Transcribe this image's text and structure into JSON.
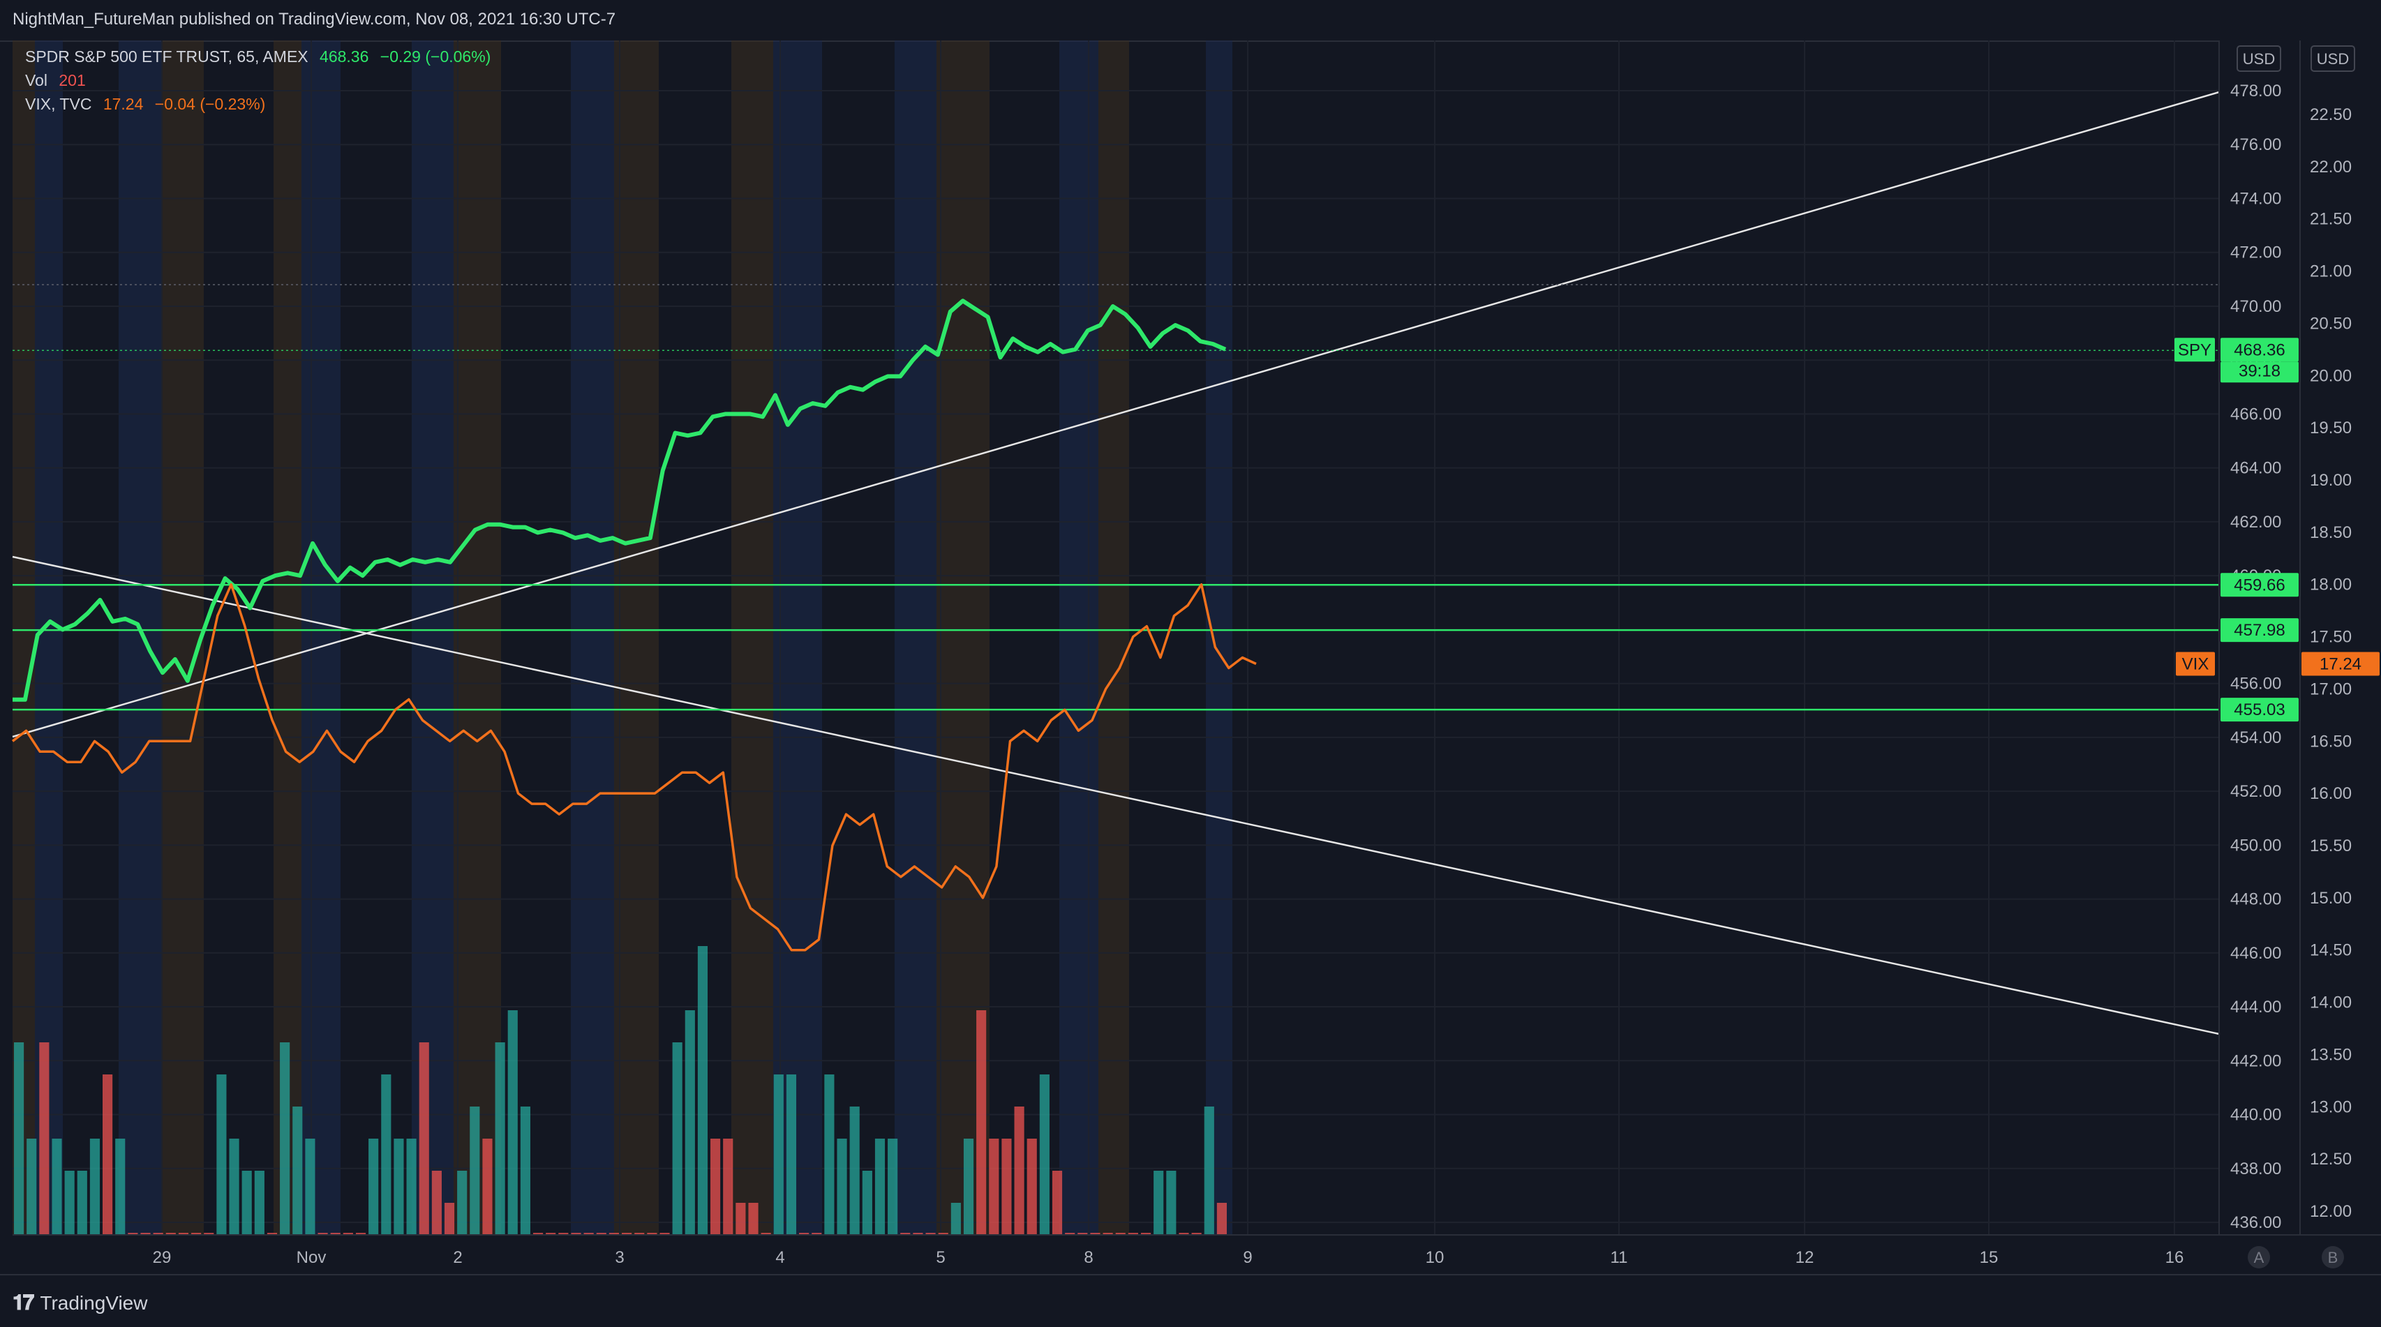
{
  "header": {
    "text": "NightMan_FutureMan published on TradingView.com, Nov 08, 2021 16:30 UTC-7"
  },
  "legend": {
    "spy": {
      "name": "SPDR S&P 500 ETF TRUST, 65, AMEX",
      "price": "468.36",
      "change": "−0.29 (−0.06%)"
    },
    "vol": {
      "name": "Vol",
      "value": "201"
    },
    "vix": {
      "name": "VIX, TVC",
      "price": "17.24",
      "change": "−0.04 (−0.23%)"
    }
  },
  "axis": {
    "left_currency": "USD",
    "right_currency": "USD",
    "left_ticks": [
      "478.00",
      "476.00",
      "474.00",
      "472.00",
      "470.00",
      "468.00",
      "466.00",
      "464.00",
      "462.00",
      "460.00",
      "458.00",
      "456.00",
      "454.00",
      "452.00",
      "450.00",
      "448.00",
      "446.00",
      "444.00",
      "442.00",
      "440.00",
      "438.00",
      "436.00"
    ],
    "right_ticks": [
      "22.50",
      "22.00",
      "21.50",
      "21.00",
      "20.50",
      "20.00",
      "19.50",
      "19.00",
      "18.50",
      "18.00",
      "17.50",
      "17.00",
      "16.50",
      "16.00",
      "15.50",
      "15.00",
      "14.50",
      "14.00",
      "13.50",
      "13.00",
      "12.50",
      "12.00"
    ],
    "x_ticks": [
      "29",
      "Nov",
      "2",
      "3",
      "4",
      "5",
      "8",
      "9",
      "10",
      "11",
      "12",
      "15",
      "16"
    ],
    "scale_buttons": [
      "A",
      "B"
    ]
  },
  "price_labels": {
    "spy_tag": "SPY",
    "spy_price": "468.36",
    "spy_countdown": "39:18",
    "level_1": "459.66",
    "level_2": "457.98",
    "level_3": "455.03",
    "vix_tag": "VIX",
    "vix_price": "17.24"
  },
  "colors": {
    "spy": "#2ee86a",
    "vix": "#f2711c",
    "vol_up": "#26a69a",
    "vol_down": "#ef5350",
    "level": "#2ee86a",
    "trend": "#e6e6e6",
    "bg": "#131722",
    "session_pre": "#3a2e1f",
    "session_post": "#1c2a4d"
  },
  "footer": {
    "brand": "TradingView"
  },
  "chart_data": [
    {
      "type": "line",
      "title": "SPDR S&P 500 ETF TRUST, 65, AMEX",
      "ylabel": "USD",
      "ylim": [
        435,
        479
      ],
      "x_label_ticks": [
        "29",
        "Nov",
        "2",
        "3",
        "4",
        "5",
        "8",
        "9",
        "10",
        "11",
        "12",
        "15",
        "16"
      ],
      "series": [
        {
          "name": "SPY",
          "values": [
            455.4,
            455.4,
            457.8,
            458.3,
            458.0,
            458.2,
            458.6,
            459.1,
            458.3,
            458.4,
            458.2,
            457.2,
            456.4,
            456.9,
            456.1,
            457.6,
            458.9,
            459.9,
            459.5,
            458.8,
            459.8,
            460.0,
            460.1,
            460.0,
            461.2,
            460.4,
            459.8,
            460.3,
            460.0,
            460.5,
            460.6,
            460.4,
            460.6,
            460.5,
            460.6,
            460.5,
            461.1,
            461.7,
            461.9,
            461.9,
            461.8,
            461.8,
            461.6,
            461.7,
            461.6,
            461.4,
            461.5,
            461.3,
            461.4,
            461.2,
            461.3,
            461.4,
            463.9,
            465.3,
            465.2,
            465.3,
            465.9,
            466.0,
            466.0,
            466.0,
            465.9,
            466.7,
            465.6,
            466.2,
            466.4,
            466.3,
            466.8,
            467.0,
            466.9,
            467.2,
            467.4,
            467.4,
            468.0,
            468.5,
            468.2,
            469.8,
            470.2,
            469.9,
            469.6,
            468.1,
            468.8,
            468.5,
            468.3,
            468.6,
            468.3,
            468.4,
            469.1,
            469.3,
            470.0,
            469.7,
            469.2,
            468.5,
            469.0,
            469.3,
            469.1,
            468.7,
            468.6,
            468.4
          ]
        }
      ]
    },
    {
      "type": "line",
      "title": "VIX, TVC",
      "ylabel": "USD",
      "ylim": [
        11.8,
        23.0
      ],
      "series": [
        {
          "name": "VIX",
          "values": [
            16.5,
            16.6,
            16.4,
            16.4,
            16.3,
            16.3,
            16.5,
            16.4,
            16.2,
            16.3,
            16.5,
            16.5,
            16.5,
            16.5,
            17.1,
            17.7,
            18.0,
            17.6,
            17.1,
            16.7,
            16.4,
            16.3,
            16.4,
            16.6,
            16.4,
            16.3,
            16.5,
            16.6,
            16.8,
            16.9,
            16.7,
            16.6,
            16.5,
            16.6,
            16.5,
            16.6,
            16.4,
            16.0,
            15.9,
            15.9,
            15.8,
            15.9,
            15.9,
            16.0,
            16.0,
            16.0,
            16.0,
            16.0,
            16.1,
            16.2,
            16.2,
            16.1,
            16.2,
            15.2,
            14.9,
            14.8,
            14.7,
            14.5,
            14.5,
            14.6,
            15.5,
            15.8,
            15.7,
            15.8,
            15.3,
            15.2,
            15.3,
            15.2,
            15.1,
            15.3,
            15.2,
            15.0,
            15.3,
            16.5,
            16.6,
            16.5,
            16.7,
            16.8,
            16.6,
            16.7,
            17.0,
            17.2,
            17.5,
            17.6,
            17.3,
            17.7,
            17.8,
            18.0,
            17.4,
            17.2,
            17.3,
            17.24
          ]
        }
      ]
    },
    {
      "type": "bar",
      "title": "Vol",
      "series": [
        {
          "name": "Vol",
          "up": [
            1,
            1,
            0,
            1,
            1,
            1,
            1,
            0,
            1,
            0,
            0,
            0,
            0,
            0,
            0,
            0,
            1,
            1,
            1,
            1,
            0,
            1,
            1,
            1,
            0,
            0,
            0,
            0,
            1,
            1,
            1,
            1,
            0,
            0,
            0,
            1,
            1,
            0,
            1,
            1,
            1,
            0,
            0,
            0,
            0,
            0,
            0,
            0,
            0,
            0,
            0,
            0,
            1,
            1,
            1,
            0,
            0,
            0,
            0,
            0,
            1,
            1,
            0,
            0,
            1,
            1,
            1,
            1,
            1,
            1,
            0,
            0,
            0,
            0,
            1,
            1,
            0,
            0,
            0,
            0,
            0,
            1,
            0,
            0,
            0,
            0,
            0,
            0,
            0,
            0,
            1,
            1,
            0,
            0,
            1,
            0
          ],
          "values": [
            0.6,
            0.3,
            0.6,
            0.3,
            0.2,
            0.2,
            0.3,
            0.5,
            0.3,
            0.0,
            0.0,
            0.0,
            0.0,
            0.0,
            0.0,
            0.0,
            0.5,
            0.3,
            0.2,
            0.2,
            0.0,
            0.6,
            0.4,
            0.3,
            0.0,
            0.0,
            0.0,
            0.0,
            0.3,
            0.5,
            0.3,
            0.3,
            0.6,
            0.2,
            0.1,
            0.2,
            0.4,
            0.3,
            0.6,
            0.7,
            0.4,
            0.0,
            0.0,
            0.0,
            0.0,
            0.0,
            0.0,
            0.0,
            0.0,
            0.0,
            0.0,
            0.0,
            0.6,
            0.7,
            0.9,
            0.3,
            0.3,
            0.1,
            0.1,
            0.0,
            0.5,
            0.5,
            0.0,
            0.0,
            0.5,
            0.3,
            0.4,
            0.2,
            0.3,
            0.3,
            0.0,
            0.0,
            0.0,
            0.0,
            0.1,
            0.3,
            0.7,
            0.3,
            0.3,
            0.4,
            0.3,
            0.5,
            0.2,
            0.0,
            0.0,
            0.0,
            0.0,
            0.0,
            0.0,
            0.0,
            0.2,
            0.2,
            0.0,
            0.0,
            0.4,
            0.1
          ]
        }
      ]
    }
  ]
}
